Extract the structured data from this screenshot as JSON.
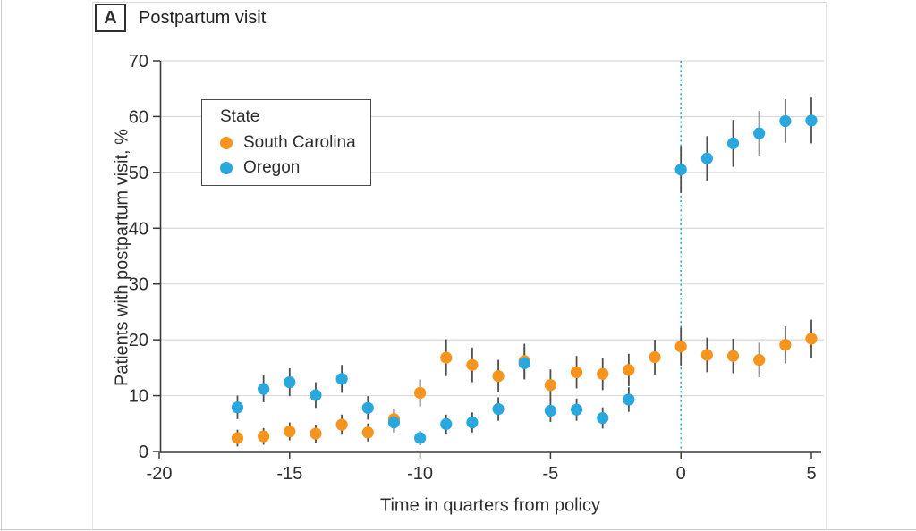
{
  "header": {
    "panel_label": "A",
    "title": "Postpartum visit"
  },
  "legend": {
    "title": "State",
    "items": [
      {
        "label": "South Carolina",
        "color": "#F7941E"
      },
      {
        "label": "Oregon",
        "color": "#29A8E0"
      }
    ]
  },
  "chart_data": {
    "type": "scatter",
    "title": "Postpartum visit",
    "xlabel": "Time in quarters from policy",
    "ylabel": "Patients with postpartum visit, %",
    "xlim": [
      -20,
      5
    ],
    "ylim": [
      0,
      70
    ],
    "x_ticks": [
      -20,
      -15,
      -10,
      -5,
      0,
      5
    ],
    "y_ticks": [
      0,
      10,
      20,
      30,
      40,
      50,
      60,
      70
    ],
    "grid": "horizontal",
    "error_bars": true,
    "policy_line_x": 0,
    "colors": {
      "grid": "#d9d9d9",
      "axis": "#3a3a3a",
      "tick_text": "#2e2e2e",
      "error_bar": "#4f4f4f",
      "policy_line": "#29A8E0"
    },
    "series": [
      {
        "name": "South Carolina",
        "color": "#F7941E",
        "points": [
          {
            "t": -17,
            "v": 2.4,
            "e": 1.5
          },
          {
            "t": -16,
            "v": 2.7,
            "e": 1.5
          },
          {
            "t": -15,
            "v": 3.6,
            "e": 1.6
          },
          {
            "t": -14,
            "v": 3.2,
            "e": 1.6
          },
          {
            "t": -13,
            "v": 4.8,
            "e": 1.8
          },
          {
            "t": -12,
            "v": 3.4,
            "e": 1.6
          },
          {
            "t": -11,
            "v": 5.8,
            "e": 1.9
          },
          {
            "t": -10,
            "v": 10.5,
            "e": 2.4
          },
          {
            "t": -9,
            "v": 16.8,
            "e": 3.3
          },
          {
            "t": -8,
            "v": 15.5,
            "e": 3.1
          },
          {
            "t": -7,
            "v": 13.5,
            "e": 2.9
          },
          {
            "t": -6,
            "v": 16.2,
            "e": 3.1
          },
          {
            "t": -5,
            "v": 11.9,
            "e": 2.8
          },
          {
            "t": -4,
            "v": 14.2,
            "e": 2.9
          },
          {
            "t": -3,
            "v": 13.9,
            "e": 2.9
          },
          {
            "t": -2,
            "v": 14.6,
            "e": 2.9
          },
          {
            "t": -1,
            "v": 16.9,
            "e": 3.1
          },
          {
            "t": 0,
            "v": 18.8,
            "e": 3.4
          },
          {
            "t": 1,
            "v": 17.3,
            "e": 3.1
          },
          {
            "t": 2,
            "v": 17.1,
            "e": 3.1
          },
          {
            "t": 3,
            "v": 16.4,
            "e": 3.1
          },
          {
            "t": 4,
            "v": 19.1,
            "e": 3.3
          },
          {
            "t": 5,
            "v": 20.2,
            "e": 3.4
          }
        ]
      },
      {
        "name": "Oregon",
        "color": "#29A8E0",
        "points": [
          {
            "t": -17,
            "v": 7.9,
            "e": 2.1
          },
          {
            "t": -16,
            "v": 11.2,
            "e": 2.4
          },
          {
            "t": -15,
            "v": 12.4,
            "e": 2.5
          },
          {
            "t": -14,
            "v": 10.1,
            "e": 2.3
          },
          {
            "t": -13,
            "v": 13.0,
            "e": 2.5
          },
          {
            "t": -12,
            "v": 7.8,
            "e": 2.1
          },
          {
            "t": -11,
            "v": 5.2,
            "e": 1.8
          },
          {
            "t": -10,
            "v": 2.4,
            "e": 1.3
          },
          {
            "t": -9,
            "v": 4.9,
            "e": 1.7
          },
          {
            "t": -8,
            "v": 5.2,
            "e": 1.8
          },
          {
            "t": -7,
            "v": 7.6,
            "e": 2.1
          },
          {
            "t": -6,
            "v": 15.8,
            "e": 2.9
          },
          {
            "t": -5,
            "v": 7.3,
            "e": 2.0
          },
          {
            "t": -4,
            "v": 7.5,
            "e": 2.0
          },
          {
            "t": -3,
            "v": 6.0,
            "e": 1.9
          },
          {
            "t": -2,
            "v": 9.3,
            "e": 2.2
          },
          {
            "t": 0,
            "v": 50.5,
            "e": 4.2
          },
          {
            "t": 1,
            "v": 52.5,
            "e": 4.0
          },
          {
            "t": 2,
            "v": 55.2,
            "e": 4.2
          },
          {
            "t": 3,
            "v": 57.0,
            "e": 4.0
          },
          {
            "t": 4,
            "v": 59.2,
            "e": 3.9
          },
          {
            "t": 5,
            "v": 59.3,
            "e": 4.1
          }
        ]
      }
    ]
  }
}
